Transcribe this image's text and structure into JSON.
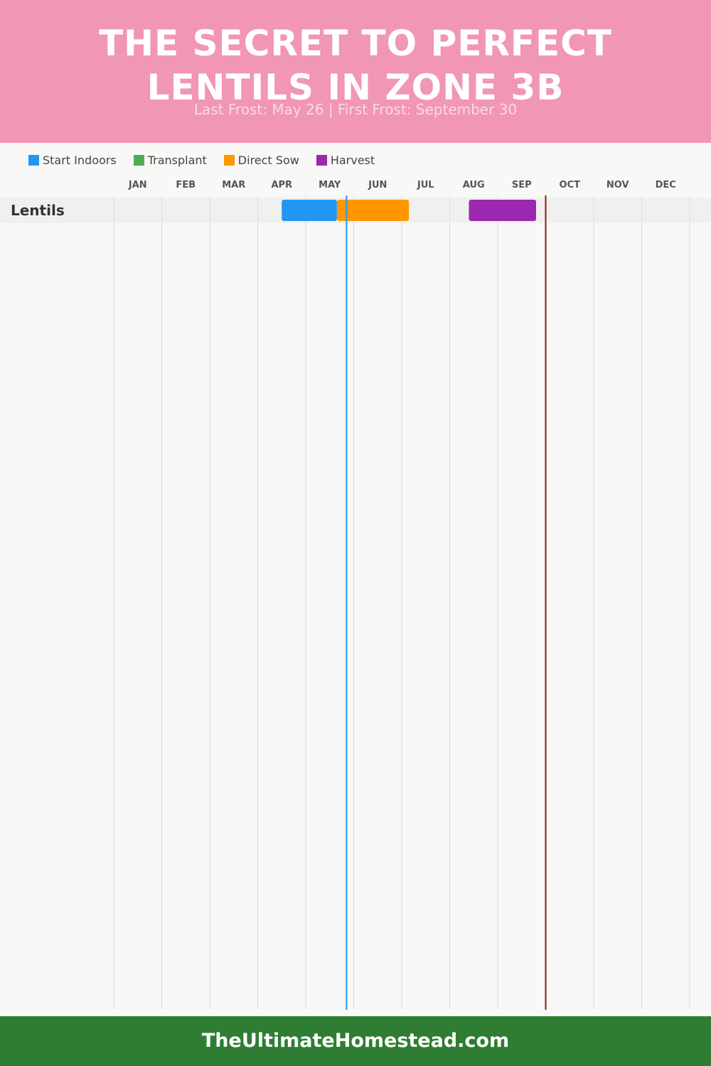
{
  "header": {
    "title_line1": "THE SECRET TO PERFECT",
    "title_line2": "LENTILS IN ZONE 3B",
    "subtitle": "Last Frost: May 26 | First Frost: September 30"
  },
  "legend": [
    {
      "label": "Start Indoors",
      "color": "#2196f3"
    },
    {
      "label": "Transplant",
      "color": "#4caf50"
    },
    {
      "label": "Direct Sow",
      "color": "#ff9800"
    },
    {
      "label": "Harvest",
      "color": "#9c27b0"
    }
  ],
  "chart_data": {
    "type": "gantt",
    "months": [
      "JAN",
      "FEB",
      "MAR",
      "APR",
      "MAY",
      "JUN",
      "JUL",
      "AUG",
      "SEP",
      "OCT",
      "NOV",
      "DEC"
    ],
    "rows": [
      {
        "crop": "Lentils",
        "periods": [
          {
            "activity": "Start Indoors",
            "start": "Apr 15",
            "end": "May 20",
            "start_month": 3.5,
            "end_month": 4.65,
            "color": "#2196f3"
          },
          {
            "activity": "Direct Sow",
            "start": "May 20",
            "end": "Jul 1",
            "start_month": 4.65,
            "end_month": 6.15,
            "color": "#ff9800"
          },
          {
            "activity": "Harvest",
            "start": "Aug 12",
            "end": "Sep 25",
            "start_month": 7.4,
            "end_month": 8.8,
            "color": "#9c27b0"
          }
        ]
      }
    ],
    "markers": [
      {
        "name": "Last Frost",
        "date": "May 26",
        "month_value": 4.85,
        "color": "#2196f3"
      },
      {
        "name": "First Frost",
        "date": "September 30",
        "month_value": 9.0,
        "color": "#8b1a1a"
      }
    ]
  },
  "footer": {
    "text": "TheUltimateHomestead.com",
    "color": "#2e7d32"
  },
  "colors": {
    "header_bg": "#f196b4",
    "page_bg": "#f8f8f6",
    "row_bg": "#f0f0ee",
    "grid": "#dddddd"
  }
}
